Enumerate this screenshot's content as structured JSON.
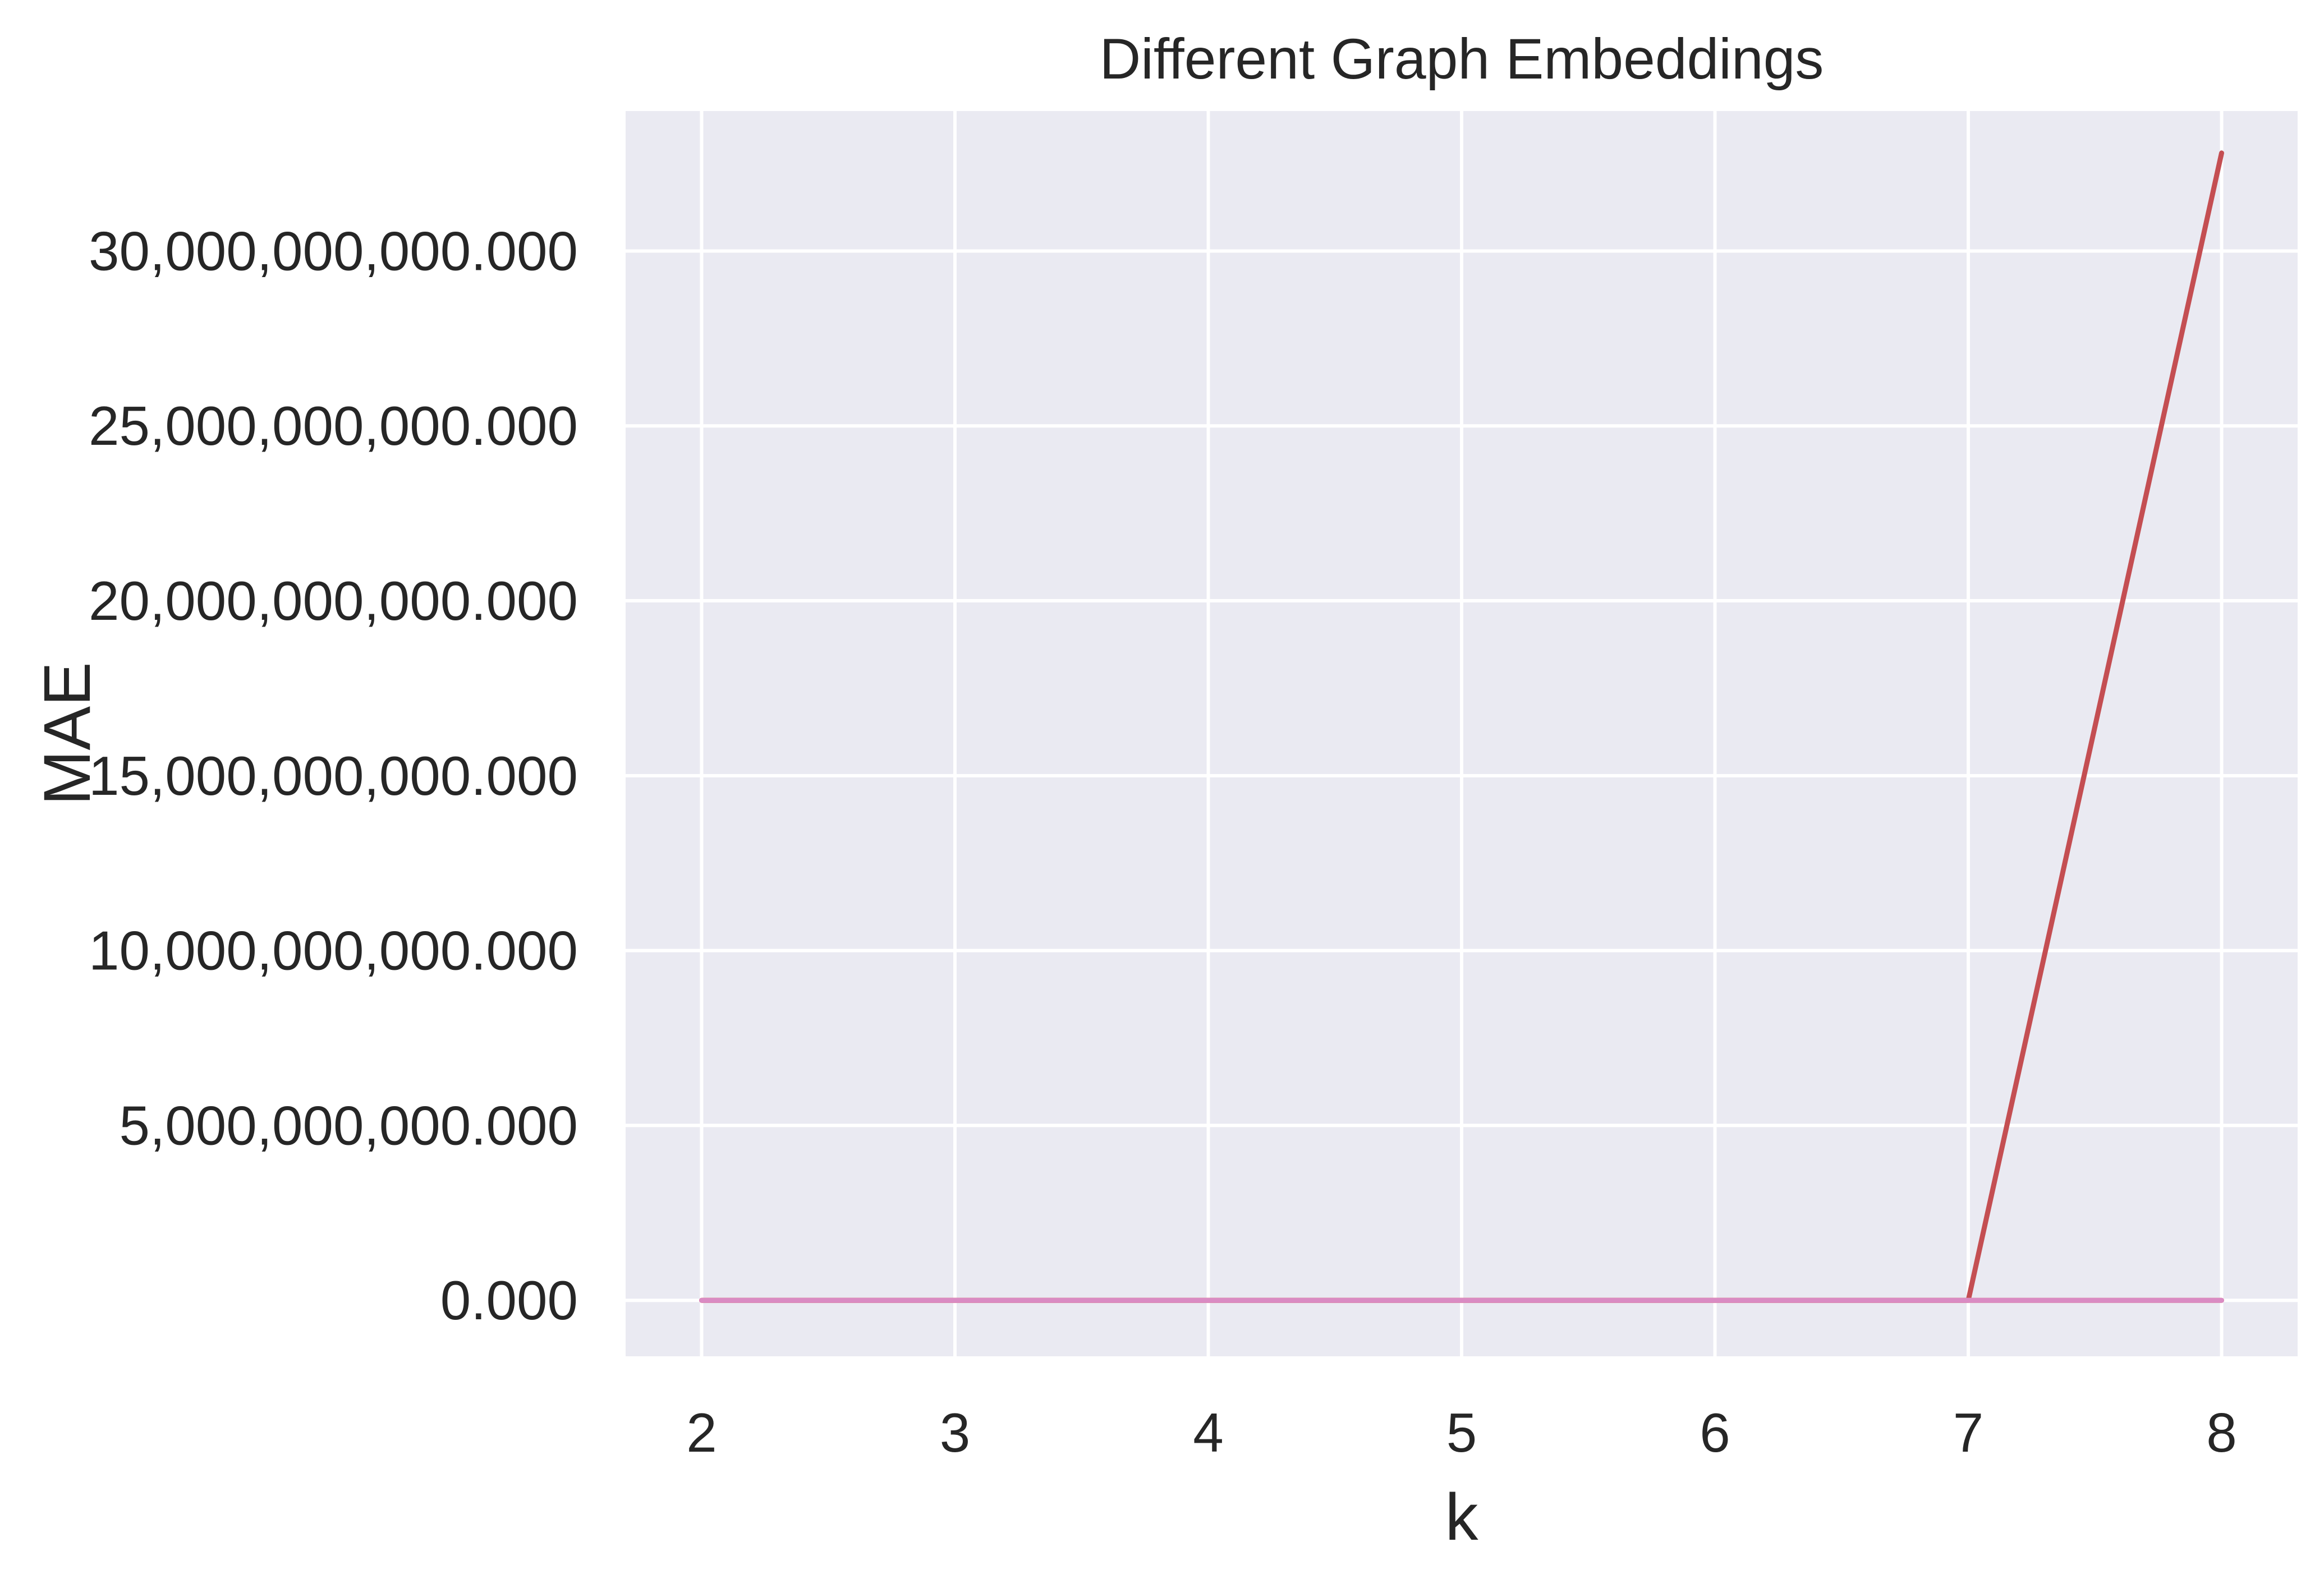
{
  "chart_data": {
    "type": "line",
    "title": "Different Graph Embeddings",
    "xlabel": "k",
    "ylabel": "MAE",
    "x": [
      2,
      3,
      4,
      5,
      6,
      7,
      8
    ],
    "xlim": [
      1.7,
      8.3
    ],
    "ylim": [
      -1600000000,
      34000000000
    ],
    "xticks": [
      2,
      3,
      4,
      5,
      6,
      7,
      8
    ],
    "xtick_labels": [
      "2",
      "3",
      "4",
      "5",
      "6",
      "7",
      "8"
    ],
    "yticks": [
      0,
      5000000000,
      10000000000,
      15000000000,
      20000000000,
      25000000000,
      30000000000
    ],
    "ytick_labels": [
      "0.000",
      "5,000,000,000.000",
      "10,000,000,000.000",
      "15,000,000,000.000",
      "20,000,000,000.000",
      "25,000,000,000.000",
      "30,000,000,000.000"
    ],
    "grid": true,
    "legend": "none",
    "background_color": "#eaeaf2",
    "grid_color": "#ffffff",
    "series": [
      {
        "color": "#c44e52",
        "values": [
          0,
          0,
          0,
          0,
          0,
          0,
          32800000000
        ]
      },
      {
        "color": "#dd8452",
        "values": [
          0,
          0,
          0,
          0,
          0,
          0,
          0
        ]
      },
      {
        "color": "#da8bc3",
        "values": [
          0,
          0,
          0,
          0,
          0,
          0,
          0
        ]
      }
    ]
  }
}
